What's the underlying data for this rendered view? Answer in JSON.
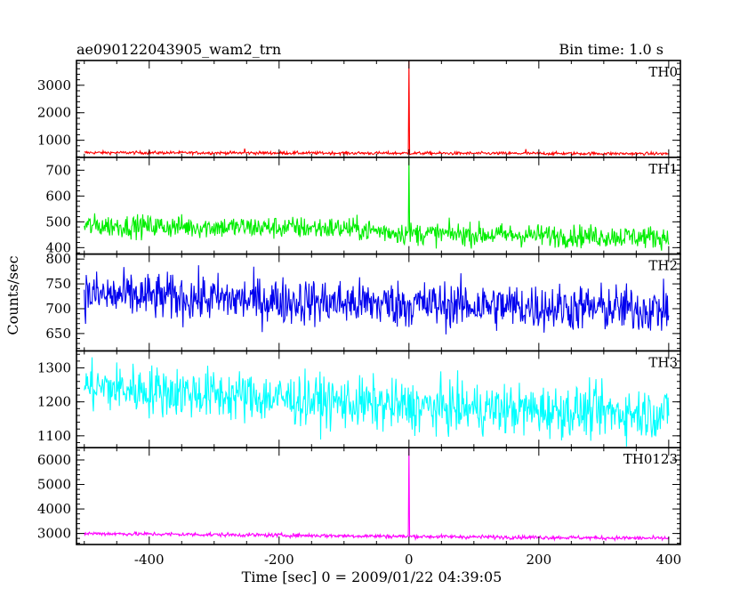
{
  "header": {
    "left": "ae090122043905_wam2_trn",
    "right": "Bin time: 1.0 s"
  },
  "chart_data": {
    "type": "line",
    "xlabel": "Time [sec] 0 = 2009/01/22 04:39:05",
    "ylabel": "Counts/sec",
    "xlim": [
      -512,
      418
    ],
    "xticks": [
      -400,
      -200,
      0,
      200,
      400
    ],
    "bin_time_s": 1.0,
    "panels": [
      {
        "name": "TH0",
        "color": "#ff0000",
        "ylim": [
          380,
          3900
        ],
        "yticks": [
          1000,
          2000,
          3000
        ],
        "baseline": [
          {
            "t": -500,
            "v": 550
          },
          {
            "t": 400,
            "v": 510
          }
        ],
        "noise": 28,
        "spikes": [
          {
            "t": 0,
            "v": 3900
          },
          {
            "t": -253,
            "v": 700
          },
          {
            "t": 180,
            "v": 680
          }
        ]
      },
      {
        "name": "TH1",
        "color": "#00ee00",
        "ylim": [
          375,
          750
        ],
        "yticks": [
          400,
          500,
          600,
          700
        ],
        "baseline": [
          {
            "t": -500,
            "v": 485
          },
          {
            "t": -100,
            "v": 475
          },
          {
            "t": 0,
            "v": 455
          },
          {
            "t": 400,
            "v": 440
          }
        ],
        "noise": 22,
        "spikes": [
          {
            "t": 0,
            "v": 750
          }
        ]
      },
      {
        "name": "TH2",
        "color": "#0000ee",
        "ylim": [
          615,
          810
        ],
        "yticks": [
          650,
          700,
          750,
          800
        ],
        "baseline": [
          {
            "t": -500,
            "v": 728
          },
          {
            "t": -100,
            "v": 712
          },
          {
            "t": 400,
            "v": 698
          }
        ],
        "noise": 24,
        "spikes": []
      },
      {
        "name": "TH3",
        "color": "#00ffff",
        "ylim": [
          1065,
          1350
        ],
        "yticks": [
          1100,
          1200,
          1300
        ],
        "baseline": [
          {
            "t": -500,
            "v": 1245
          },
          {
            "t": -200,
            "v": 1210
          },
          {
            "t": 0,
            "v": 1185
          },
          {
            "t": 400,
            "v": 1165
          }
        ],
        "noise": 38,
        "spikes": []
      },
      {
        "name": "TH0123",
        "color": "#ff00ff",
        "ylim": [
          2550,
          6500
        ],
        "yticks": [
          3000,
          4000,
          5000,
          6000
        ],
        "baseline": [
          {
            "t": -500,
            "v": 3000
          },
          {
            "t": 0,
            "v": 2880
          },
          {
            "t": 400,
            "v": 2800
          }
        ],
        "noise": 40,
        "spikes": [
          {
            "t": 0,
            "v": 6500
          }
        ]
      }
    ]
  }
}
